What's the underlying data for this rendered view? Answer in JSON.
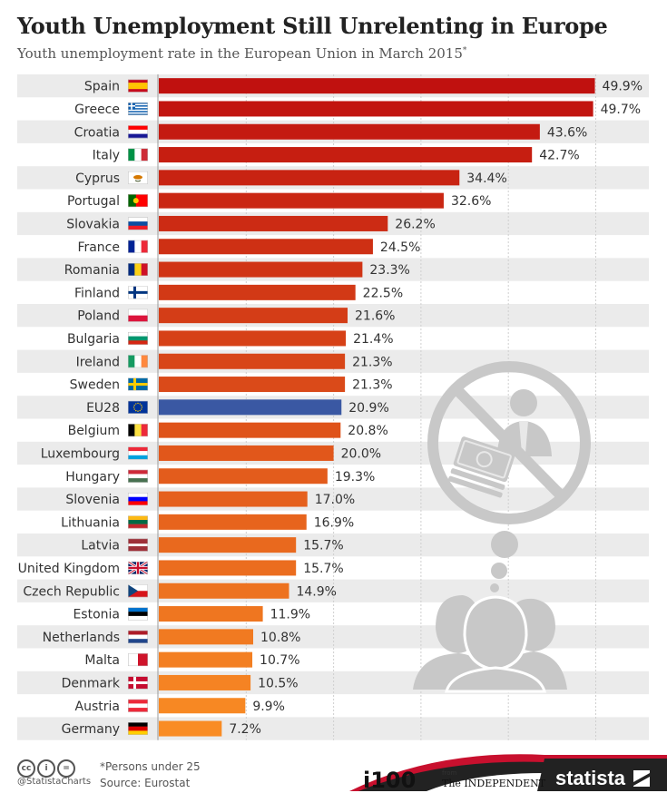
{
  "title": "Youth Unemployment Still Unrelenting in Europe",
  "subtitle": "Youth unemployment rate in the European Union in March 2015",
  "subtitle_mark": "*",
  "footer": {
    "handle": "@StatistaCharts",
    "note": "*Persons under 25",
    "source": "Source: Eurostat",
    "i100": "i100",
    "from": "from",
    "independent": "The INDEPENDENT",
    "statista": "statista"
  },
  "colors": {
    "highlight": "#3a58a3",
    "gradient_top": "#c0110f",
    "gradient_bottom": "#f98c24",
    "row_alt": "#ebebeb",
    "icon": "#c8c8c8"
  },
  "icons": [
    "no-money-icon",
    "thought-bubble-icon",
    "people-icon",
    "cc-icon",
    "by-icon",
    "nd-icon",
    "statista-logo-icon"
  ],
  "chart_data": {
    "type": "bar",
    "orientation": "horizontal",
    "categories": [
      "Spain",
      "Greece",
      "Croatia",
      "Italy",
      "Cyprus",
      "Portugal",
      "Slovakia",
      "France",
      "Romania",
      "Finland",
      "Poland",
      "Bulgaria",
      "Ireland",
      "Sweden",
      "EU28",
      "Belgium",
      "Luxembourg",
      "Hungary",
      "Slovenia",
      "Lithuania",
      "Latvia",
      "United Kingdom",
      "Czech Republic",
      "Estonia",
      "Netherlands",
      "Malta",
      "Denmark",
      "Austria",
      "Germany"
    ],
    "values": [
      49.9,
      49.7,
      43.6,
      42.7,
      34.4,
      32.6,
      26.2,
      24.5,
      23.3,
      22.5,
      21.6,
      21.4,
      21.3,
      21.3,
      20.9,
      20.8,
      20.0,
      19.3,
      17.0,
      16.9,
      15.7,
      15.7,
      14.9,
      11.9,
      10.8,
      10.7,
      10.5,
      9.9,
      7.2
    ],
    "labels": [
      "49.9%",
      "49.7%",
      "43.6%",
      "42.7%",
      "34.4%",
      "32.6%",
      "26.2%",
      "24.5%",
      "23.3%",
      "22.5%",
      "21.6%",
      "21.4%",
      "21.3%",
      "21.3%",
      "20.9%",
      "20.8%",
      "20.0%",
      "19.3%",
      "17.0%",
      "16.9%",
      "15.7%",
      "15.7%",
      "14.9%",
      "11.9%",
      "10.8%",
      "10.7%",
      "10.5%",
      "9.9%",
      "7.2%"
    ],
    "highlight": "EU28",
    "unit": "%",
    "xlim": [
      0,
      55
    ],
    "grid": true
  }
}
